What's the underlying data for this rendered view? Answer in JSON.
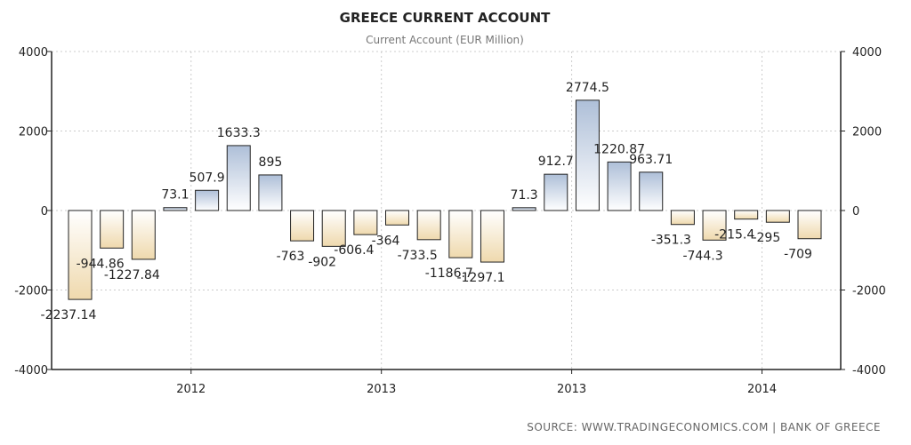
{
  "chart_data": {
    "type": "bar",
    "title": "GREECE CURRENT ACCOUNT",
    "subtitle": "Current Account (EUR Million)",
    "xlabel": "",
    "ylabel": "",
    "ylim": [
      -4000,
      4000
    ],
    "y_ticks": [
      "4000",
      "2000",
      "0",
      "-2000",
      "-4000"
    ],
    "x_tick_labels": [
      "2012",
      "2013",
      "2013",
      "2014"
    ],
    "grid": true,
    "values": [
      -2237.14,
      -944.86,
      -1227.84,
      73.1,
      507.9,
      1633.3,
      895,
      -763,
      -902,
      -606.4,
      -364,
      -733.5,
      -1186.7,
      -1297.1,
      71.3,
      912.7,
      2774.5,
      1220.87,
      963.71,
      -351.3,
      -744.3,
      -215.4,
      -295,
      -709
    ],
    "value_labels": [
      "-2237.14",
      "-944.86",
      "-1227.84",
      "73.1",
      "507.9",
      "1633.3",
      "895",
      "-763",
      "-902",
      "-606.4",
      "-364",
      "-733.5",
      "-1186.7",
      "-1297.1",
      "71.3",
      "912.7",
      "2774.5",
      "1220.87",
      "963.71",
      "-351.3",
      "-744.3",
      "-215.4",
      "-295",
      "-709"
    ],
    "colors": {
      "positive_fill_top": "#aebfd8",
      "positive_fill_bottom": "#ffffff",
      "negative_fill_top": "#ffffff",
      "negative_fill_bottom": "#efd9ad",
      "bar_stroke": "#222222",
      "grid": "#cccccc"
    }
  },
  "source": "SOURCE: WWW.TRADINGECONOMICS.COM | BANK OF GREECE"
}
